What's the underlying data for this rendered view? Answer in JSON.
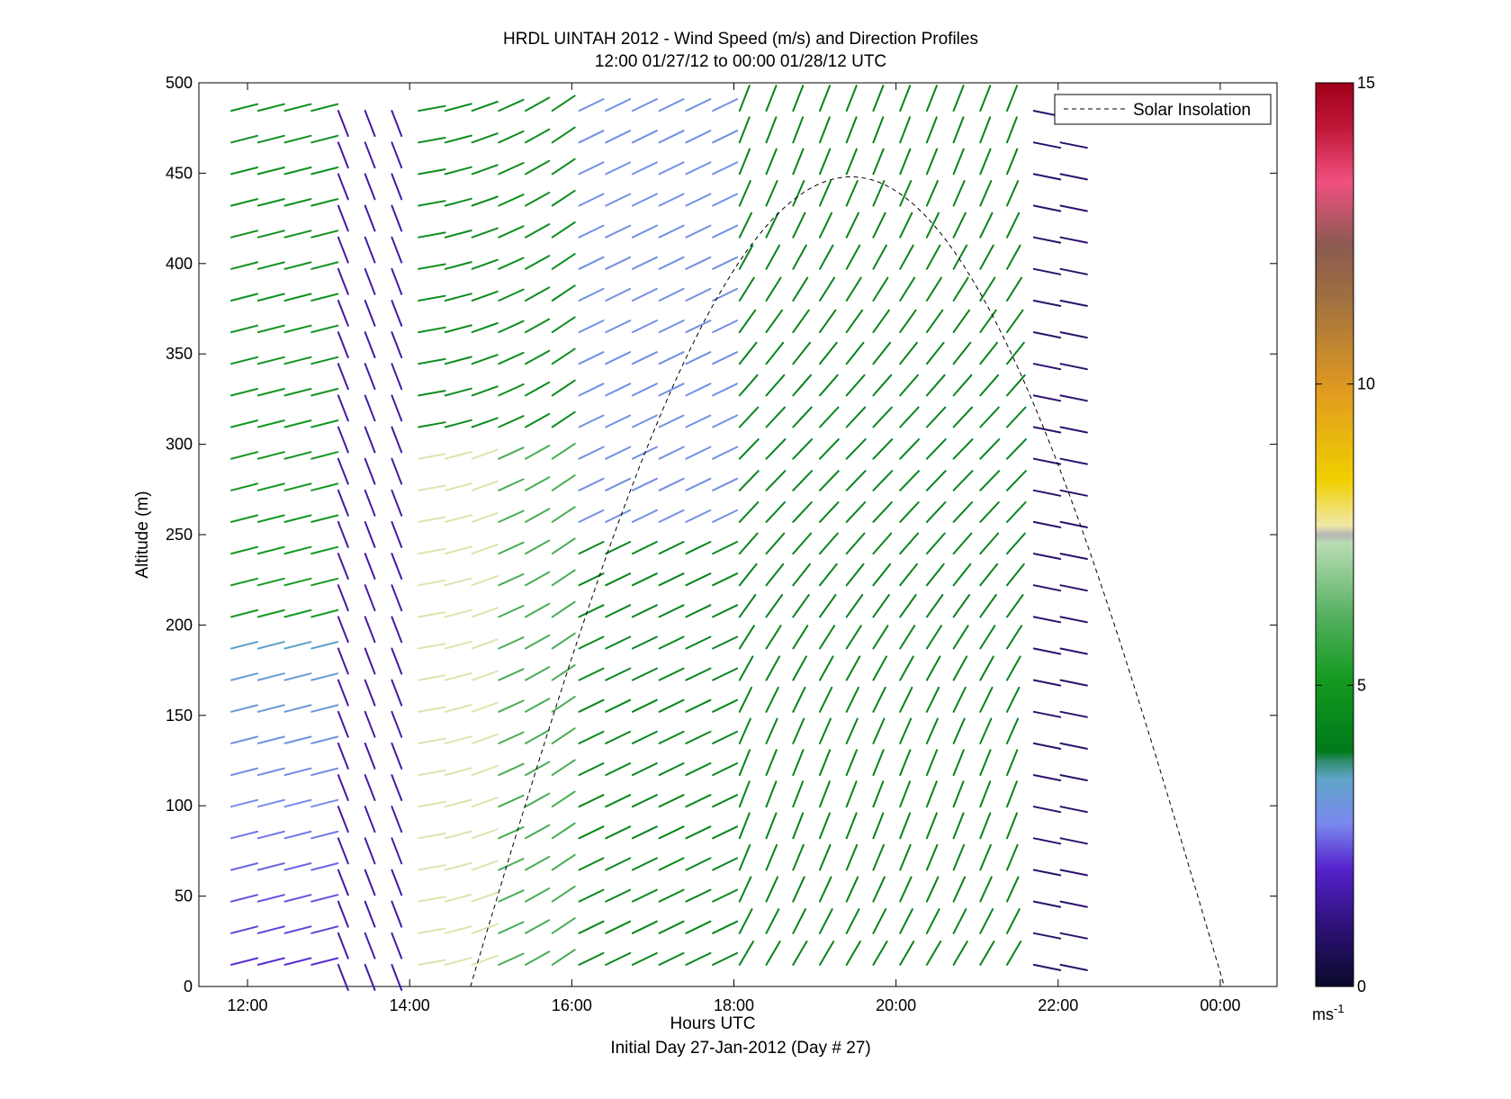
{
  "chart_data": {
    "type": "quiver",
    "title": "HRDL UINTAH 2012 - Wind Speed (m/s) and Direction Profiles",
    "subtitle": "12:00 01/27/12 to 00:00 01/28/12  UTC",
    "xlabel": "Hours UTC",
    "ylabel": "Altitude (m)",
    "footer": "Initial Day 27-Jan-2012 (Day # 27)",
    "x_ticks": [
      "12:00",
      "14:00",
      "16:00",
      "18:00",
      "20:00",
      "22:00",
      "00:00"
    ],
    "x_tick_hours": [
      12,
      14,
      16,
      18,
      20,
      22,
      24
    ],
    "xlim_hours": [
      11.4,
      24.7
    ],
    "y_ticks": [
      "0",
      "50",
      "100",
      "150",
      "200",
      "250",
      "300",
      "350",
      "400",
      "450",
      "500"
    ],
    "y_tick_values": [
      0,
      50,
      100,
      150,
      200,
      250,
      300,
      350,
      400,
      450,
      500
    ],
    "ylim": [
      0,
      500
    ],
    "legend": {
      "entries": [
        "Solar Insolation"
      ],
      "placement": "top-right"
    },
    "colorbar": {
      "ticks": [
        "0",
        "5",
        "10",
        "15"
      ],
      "tick_values": [
        0,
        5,
        10,
        15
      ],
      "range": [
        0,
        15
      ],
      "unit_base": "ms",
      "unit_exp": "-1"
    },
    "solar_insolation": {
      "rise_hour": 14.75,
      "set_hour": 24.05,
      "peak_hour": 19.45,
      "peak_altitude": 448
    },
    "grid": false,
    "profile_hours_start": 11.8,
    "profile_hours_step": 0.33,
    "profile_count": 32,
    "altitudes_start": 12,
    "altitude_step": 17.5,
    "altitude_count": 28
  }
}
